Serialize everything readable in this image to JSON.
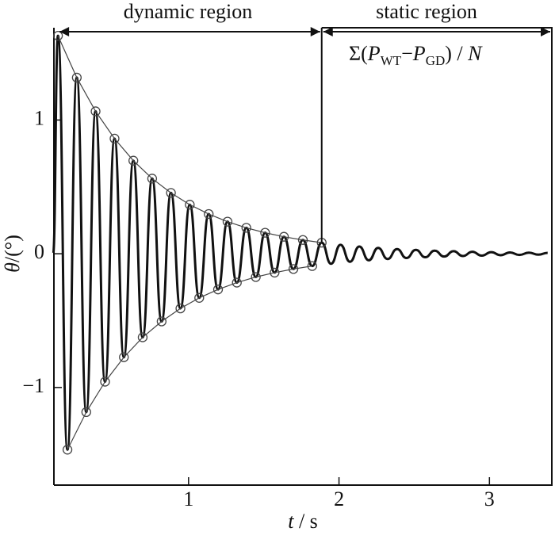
{
  "chart_data": {
    "type": "line",
    "annotations": {
      "dynamic": "dynamic region",
      "static": "static region",
      "formula": [
        "Σ(",
        "P",
        "WT",
        "−",
        "P",
        "GD",
        ") / ",
        "N"
      ]
    },
    "x_label": [
      "t",
      " / s"
    ],
    "y_label": [
      "θ",
      "/(°)"
    ],
    "xlim": [
      0.105,
      3.42
    ],
    "ylim": [
      -1.73,
      1.69
    ],
    "xticks": [
      1,
      2,
      3
    ],
    "yticks": [
      {
        "value": -1,
        "label": "−1"
      },
      0,
      1
    ],
    "series": [
      {
        "name": "θ",
        "color": "#111111",
        "x": [
          0.1,
          0.132,
          0.195,
          0.257,
          0.32,
          0.382,
          0.445,
          0.508,
          0.57,
          0.633,
          0.695,
          0.758,
          0.821,
          0.883,
          0.946,
          1.008,
          1.071,
          1.134,
          1.196,
          1.259,
          1.321,
          1.384,
          1.447,
          1.509,
          1.572,
          1.634,
          1.697,
          1.76,
          1.822,
          1.885,
          1.947,
          2.01,
          2.073,
          2.135,
          2.198,
          2.26,
          2.323,
          2.386,
          2.448,
          2.511,
          2.573,
          2.636,
          2.699,
          2.761,
          2.824,
          2.886,
          2.949,
          3.012,
          3.074,
          3.137,
          3.199,
          3.262,
          3.325,
          3.387
        ],
        "values": [
          0,
          1.63,
          -1.465,
          1.317,
          -1.184,
          1.065,
          -0.957,
          0.861,
          -0.774,
          0.696,
          -0.625,
          0.562,
          -0.506,
          0.455,
          -0.409,
          0.367,
          -0.33,
          0.297,
          -0.267,
          0.24,
          -0.216,
          0.194,
          -0.174,
          0.157,
          -0.141,
          0.127,
          -0.114,
          0.103,
          -0.092,
          0.083,
          -0.075,
          0.067,
          -0.06,
          0.054,
          -0.049,
          0.044,
          -0.039,
          0.035,
          -0.032,
          0.029,
          -0.026,
          0.023,
          -0.021,
          0.019,
          -0.017,
          0.015,
          -0.014,
          0.012,
          -0.011,
          0.01,
          -0.009,
          0.008,
          -0.007,
          0.007
        ]
      },
      {
        "color": "#444444",
        "markers": true,
        "x": [
          0.132,
          0.257,
          0.382,
          0.508,
          0.633,
          0.758,
          0.883,
          1.008,
          1.134,
          1.259,
          1.384,
          1.509,
          1.634,
          1.76,
          1.885
        ],
        "values": [
          1.63,
          1.317,
          1.065,
          0.861,
          0.696,
          0.562,
          0.455,
          0.367,
          0.297,
          0.24,
          0.194,
          0.157,
          0.127,
          0.103,
          0.083
        ]
      },
      {
        "color": "#444444",
        "markers": true,
        "x": [
          0.195,
          0.32,
          0.445,
          0.57,
          0.695,
          0.821,
          0.946,
          1.071,
          1.196,
          1.321,
          1.447,
          1.572,
          1.697,
          1.822
        ],
        "values": [
          -1.465,
          -1.184,
          -0.957,
          -0.774,
          -0.625,
          -0.506,
          -0.409,
          -0.33,
          -0.267,
          -0.216,
          -0.174,
          -0.141,
          -0.114,
          -0.092
        ]
      }
    ]
  }
}
